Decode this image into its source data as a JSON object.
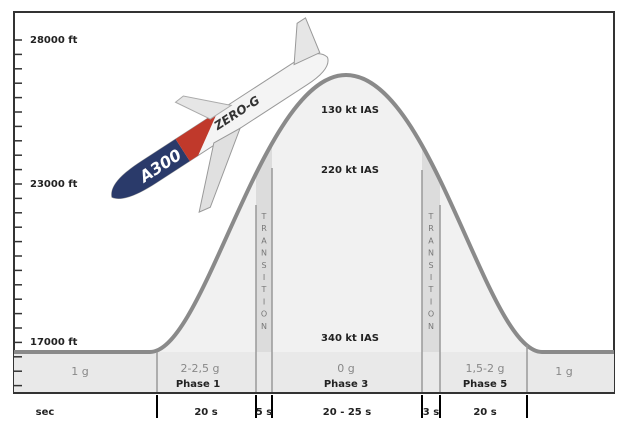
{
  "axis": {
    "labels": [
      "28000 ft",
      "23000 ft",
      "17000 ft"
    ]
  },
  "speeds": [
    "130 kt IAS",
    "220 kt IAS",
    "340 kt IAS"
  ],
  "transition": "TRANSITION",
  "phases": [
    {
      "g": "1 g"
    },
    {
      "g": "2-2,5 g",
      "name": "Phase 1"
    },
    {
      "g": "0 g",
      "name": "Phase 3"
    },
    {
      "g": "1,5-2 g",
      "name": "Phase 5"
    },
    {
      "g": "1 g"
    }
  ],
  "timeline": {
    "unit": "sec",
    "durations": [
      "20 s",
      "5 s",
      "20 - 25 s",
      "3 s",
      "20 s"
    ]
  },
  "aircraft": {
    "model": "A300",
    "livery": "ZERO-G"
  }
}
